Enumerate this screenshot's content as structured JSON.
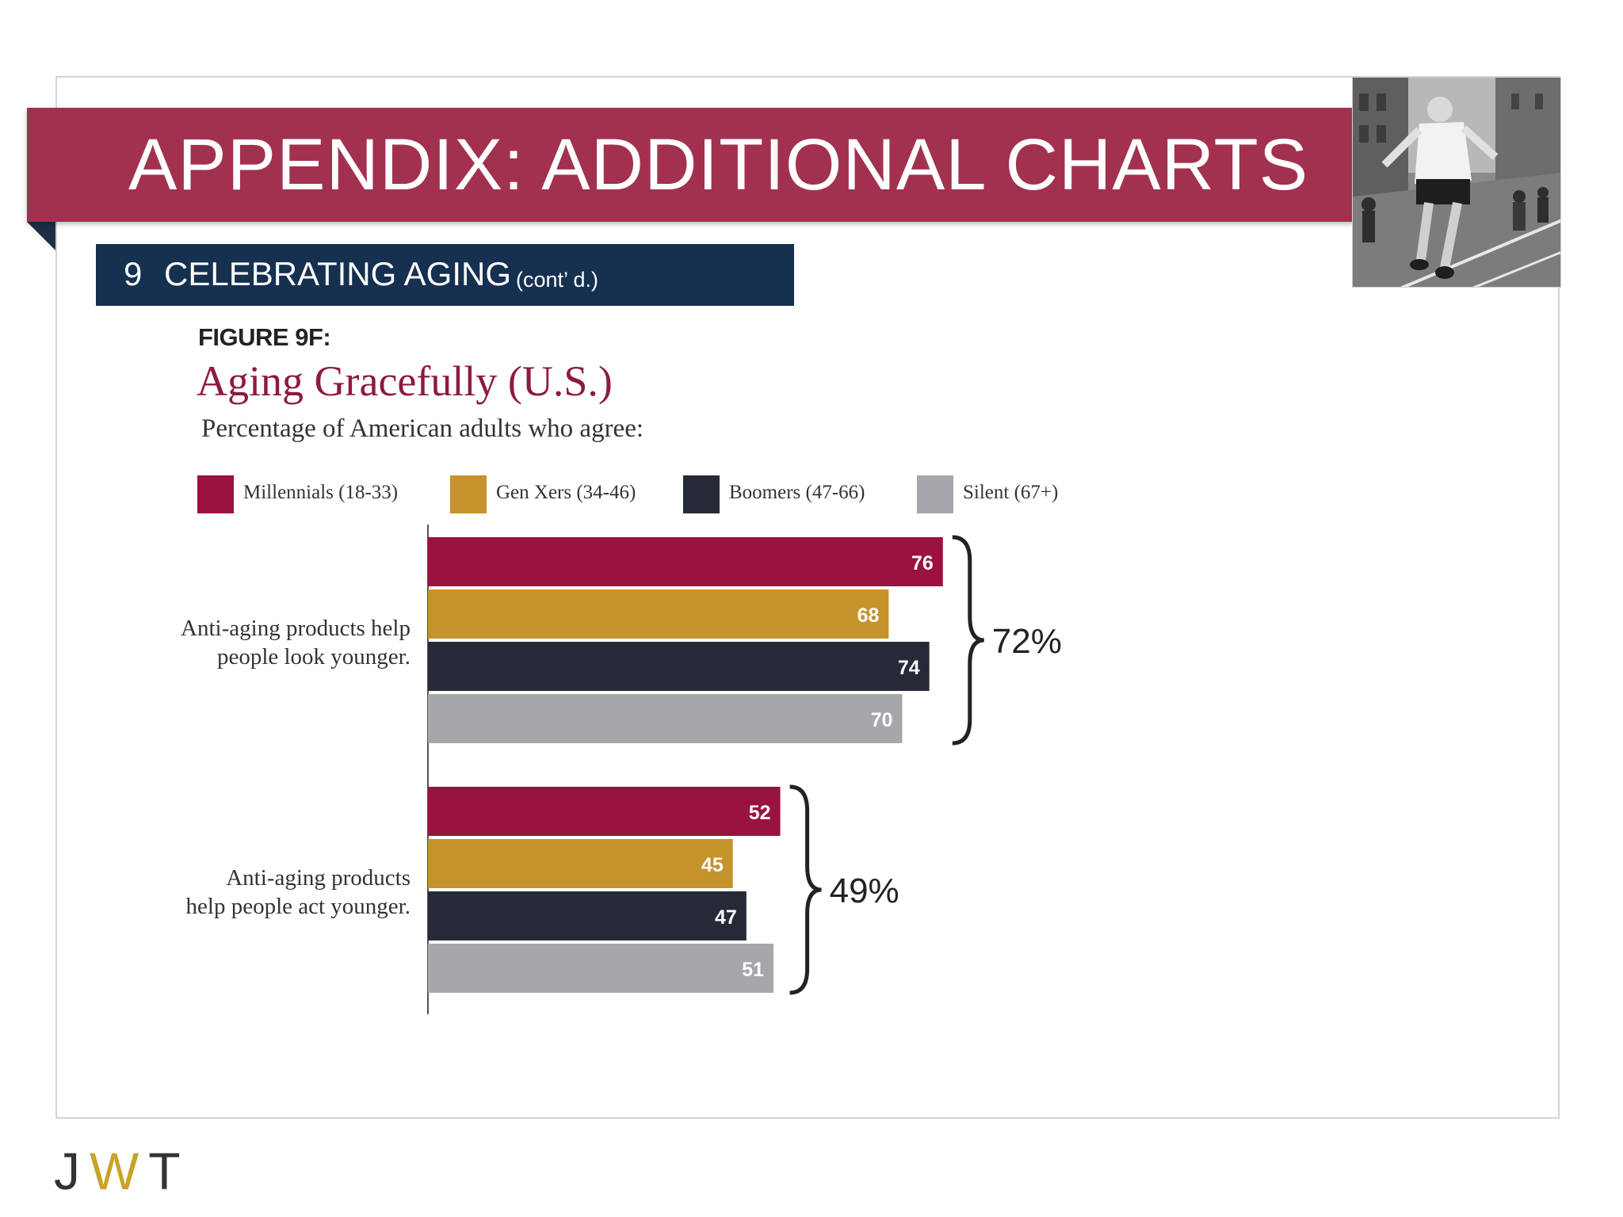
{
  "header": {
    "title": "APPENDIX: ADDITIONAL CHARTS"
  },
  "section": {
    "number": "9",
    "title": "CELEBRATING AGING",
    "note": "(cont’ d.)"
  },
  "figure": {
    "label": "FIGURE 9F:",
    "title": "Aging Gracefully (U.S.)",
    "subtitle": "Percentage of American adults who agree:"
  },
  "colors": {
    "title_band": "#a23150",
    "subtitle_band": "#16304f",
    "millennials": "#9a1240",
    "genx": "#c6922c",
    "boomers": "#262a36",
    "silent": "#a6a7ab"
  },
  "chart_data": {
    "type": "bar",
    "orientation": "horizontal",
    "title": "Aging Gracefully (U.S.)",
    "subtitle": "Percentage of American adults who agree:",
    "xlim": [
      0,
      100
    ],
    "grid": false,
    "legend_position": "top",
    "categories": [
      "Anti-aging products help people look younger.",
      "Anti-aging products help people act younger."
    ],
    "category_lines": [
      [
        "Anti-aging products help",
        "people look younger."
      ],
      [
        "Anti-aging products",
        "help people act younger."
      ]
    ],
    "series": [
      {
        "name": "Millennials (18-33)",
        "values": [
          76,
          52
        ]
      },
      {
        "name": "Gen Xers (34-46)",
        "values": [
          68,
          45
        ]
      },
      {
        "name": "Boomers (47-66)",
        "values": [
          74,
          47
        ]
      },
      {
        "name": "Silent (67+)",
        "values": [
          70,
          51
        ]
      }
    ],
    "group_totals": [
      "72%",
      "49%"
    ]
  },
  "logo": {
    "j": "J",
    "w": "W",
    "t": "T"
  }
}
